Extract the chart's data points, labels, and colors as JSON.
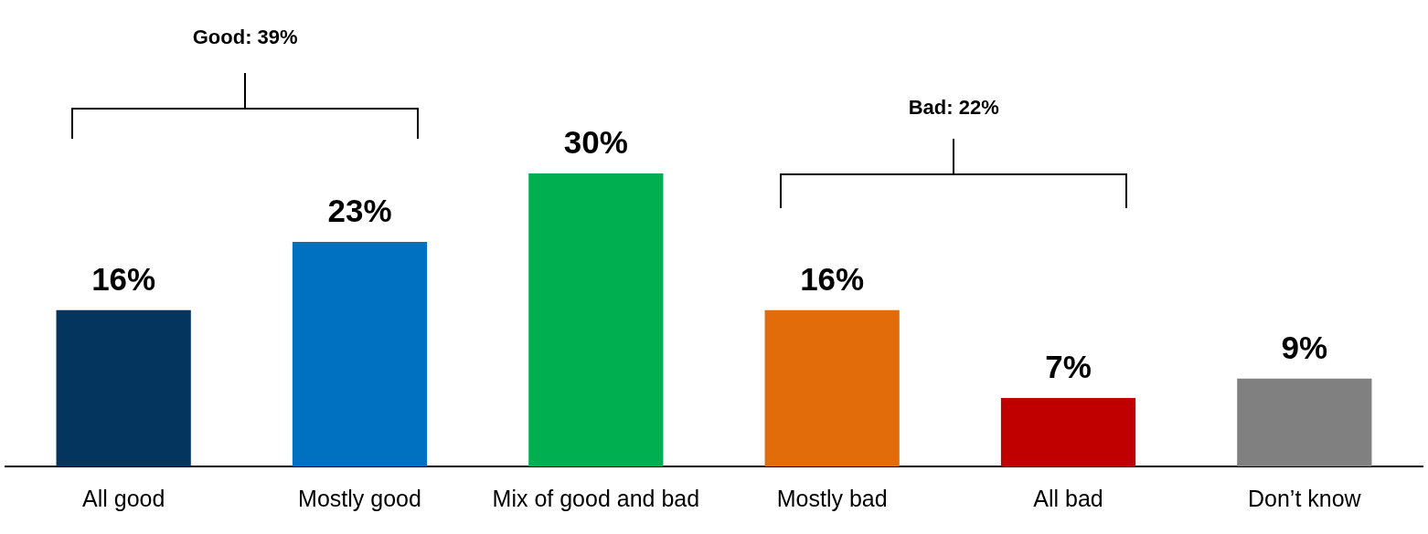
{
  "chart_data": {
    "type": "bar",
    "categories": [
      "All good",
      "Mostly good",
      "Mix of good and bad",
      "Mostly bad",
      "All bad",
      "Don’t know"
    ],
    "values": [
      16,
      23,
      30,
      16,
      7,
      9
    ],
    "colors": [
      "#03355e",
      "#0070c0",
      "#00b050",
      "#e36c0a",
      "#c00000",
      "#808080"
    ],
    "value_labels": [
      "16%",
      "23%",
      "30%",
      "16%",
      "7%",
      "9%"
    ],
    "annotations": [
      "Good: 39%",
      "Bad: 22%"
    ],
    "legend": false,
    "grid": false
  }
}
